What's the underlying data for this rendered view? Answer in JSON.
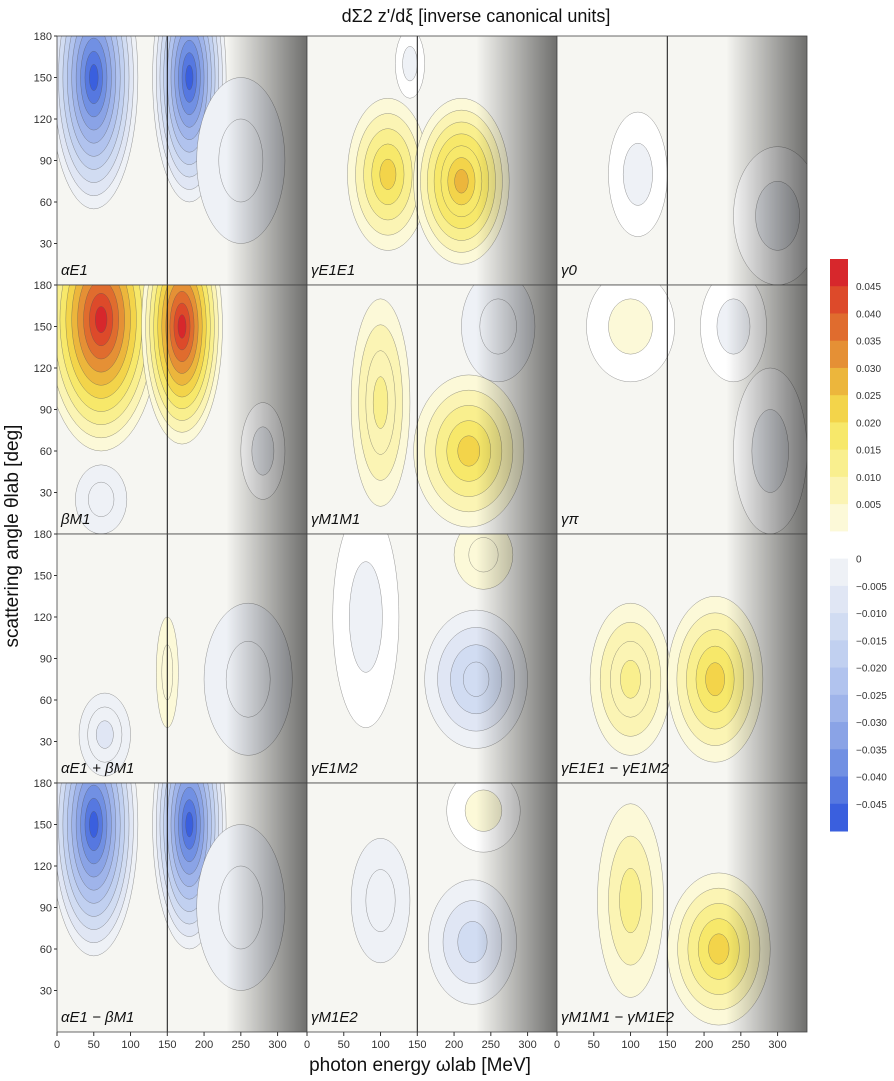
{
  "chart_data": {
    "type": "heatmap",
    "title": "dΣ2 z'/dξ [inverse canonical units]",
    "xlabel": "photon energy ωlab [MeV]",
    "ylabel": "scattering angle θlab [deg]",
    "xlim": [
      0,
      340
    ],
    "ylim": [
      0,
      180
    ],
    "xticks": [
      0,
      50,
      100,
      150,
      200,
      250,
      300
    ],
    "yticks": [
      30,
      60,
      90,
      120,
      150,
      180
    ],
    "threshold_line_x": 150,
    "grid": false,
    "colorbar": {
      "ticks": [
        "0.045",
        "0.040",
        "0.035",
        "0.030",
        "0.025",
        "0.020",
        "0.015",
        "0.010",
        "0.005",
        "0",
        "−0.005",
        "−0.010",
        "−0.015",
        "−0.020",
        "−0.025",
        "−0.030",
        "−0.035",
        "−0.040",
        "−0.045"
      ],
      "colors": [
        "#d7272c",
        "#dd4a2a",
        "#e06c2e",
        "#e59035",
        "#ecb63c",
        "#f3d44a",
        "#f7e86a",
        "#f9ef8e",
        "#fbf4b4",
        "#fcf9d8",
        "#ffffff",
        "#eef1f6",
        "#e0e6f4",
        "#d1dcf2",
        "#c1d0f0",
        "#b1c3ee",
        "#9fb4ea",
        "#8aa3e6",
        "#7190e3",
        "#5678e0",
        "#3a5fde"
      ]
    },
    "panels": [
      {
        "label": "αE1",
        "blobs": [
          {
            "x": 50,
            "y": 150,
            "rx": 60,
            "ry": 95,
            "v": -0.045
          },
          {
            "x": 180,
            "y": 150,
            "rx": 50,
            "ry": 90,
            "v": -0.045
          },
          {
            "x": 250,
            "y": 90,
            "rx": 60,
            "ry": 60,
            "v": -0.005
          }
        ]
      },
      {
        "label": "γE1E1",
        "blobs": [
          {
            "x": 110,
            "y": 80,
            "rx": 55,
            "ry": 55,
            "v": 0.022
          },
          {
            "x": 210,
            "y": 75,
            "rx": 65,
            "ry": 60,
            "v": 0.028
          },
          {
            "x": 140,
            "y": 160,
            "rx": 20,
            "ry": 25,
            "v": -0.003
          }
        ]
      },
      {
        "label": "γ0",
        "blobs": [
          {
            "x": 110,
            "y": 80,
            "rx": 40,
            "ry": 45,
            "v": -0.003
          },
          {
            "x": 300,
            "y": 50,
            "rx": 60,
            "ry": 50,
            "v": -0.003
          }
        ]
      },
      {
        "label": "βM1",
        "blobs": [
          {
            "x": 60,
            "y": 155,
            "rx": 80,
            "ry": 95,
            "v": 0.045
          },
          {
            "x": 170,
            "y": 150,
            "rx": 55,
            "ry": 85,
            "v": 0.045
          },
          {
            "x": 60,
            "y": 25,
            "rx": 35,
            "ry": 25,
            "v": -0.006
          },
          {
            "x": 280,
            "y": 60,
            "rx": 30,
            "ry": 35,
            "v": -0.004
          }
        ]
      },
      {
        "label": "γM1M1",
        "blobs": [
          {
            "x": 100,
            "y": 95,
            "rx": 40,
            "ry": 75,
            "v": 0.015
          },
          {
            "x": 220,
            "y": 60,
            "rx": 75,
            "ry": 55,
            "v": 0.022
          },
          {
            "x": 260,
            "y": 150,
            "rx": 50,
            "ry": 40,
            "v": -0.005
          }
        ]
      },
      {
        "label": "γπ",
        "blobs": [
          {
            "x": 100,
            "y": 150,
            "rx": 60,
            "ry": 40,
            "v": 0.004
          },
          {
            "x": 240,
            "y": 150,
            "rx": 45,
            "ry": 40,
            "v": -0.004
          },
          {
            "x": 290,
            "y": 60,
            "rx": 50,
            "ry": 60,
            "v": -0.003
          }
        ]
      },
      {
        "label": "αE1 + βM1",
        "blobs": [
          {
            "x": 65,
            "y": 35,
            "rx": 35,
            "ry": 30,
            "v": -0.01
          },
          {
            "x": 260,
            "y": 75,
            "rx": 60,
            "ry": 55,
            "v": -0.006
          },
          {
            "x": 150,
            "y": 80,
            "rx": 15,
            "ry": 40,
            "v": 0.005
          }
        ]
      },
      {
        "label": "γE1M2",
        "blobs": [
          {
            "x": 230,
            "y": 75,
            "rx": 70,
            "ry": 50,
            "v": -0.015
          },
          {
            "x": 80,
            "y": 120,
            "rx": 45,
            "ry": 80,
            "v": -0.003
          },
          {
            "x": 240,
            "y": 165,
            "rx": 40,
            "ry": 25,
            "v": 0.005
          }
        ]
      },
      {
        "label": "γE1E1 − γE1M2",
        "blobs": [
          {
            "x": 100,
            "y": 75,
            "rx": 55,
            "ry": 55,
            "v": 0.015
          },
          {
            "x": 215,
            "y": 75,
            "rx": 65,
            "ry": 60,
            "v": 0.022
          }
        ]
      },
      {
        "label": "αE1 − βM1",
        "blobs": [
          {
            "x": 50,
            "y": 150,
            "rx": 60,
            "ry": 95,
            "v": -0.045
          },
          {
            "x": 180,
            "y": 150,
            "rx": 50,
            "ry": 90,
            "v": -0.045
          },
          {
            "x": 250,
            "y": 90,
            "rx": 60,
            "ry": 60,
            "v": -0.005
          }
        ]
      },
      {
        "label": "γM1E2",
        "blobs": [
          {
            "x": 100,
            "y": 95,
            "rx": 40,
            "ry": 45,
            "v": -0.006
          },
          {
            "x": 225,
            "y": 65,
            "rx": 60,
            "ry": 45,
            "v": -0.012
          },
          {
            "x": 240,
            "y": 160,
            "rx": 50,
            "ry": 30,
            "v": 0.004
          }
        ]
      },
      {
        "label": "γM1M1 − γM1E2",
        "blobs": [
          {
            "x": 100,
            "y": 95,
            "rx": 45,
            "ry": 70,
            "v": 0.012
          },
          {
            "x": 220,
            "y": 60,
            "rx": 70,
            "ry": 55,
            "v": 0.022
          }
        ]
      }
    ]
  }
}
